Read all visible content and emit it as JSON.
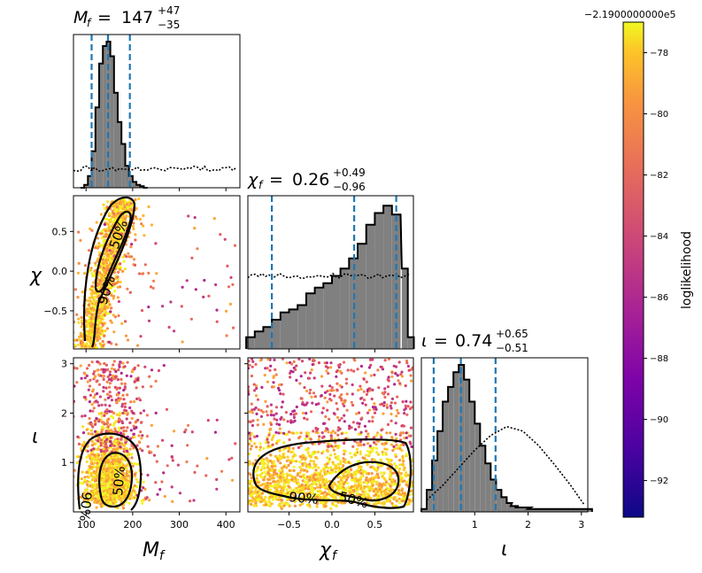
{
  "chart_data": {
    "type": "corner",
    "parameters": [
      {
        "key": "Mf",
        "symbol": "M",
        "sub": "f",
        "xlabel": "M_f",
        "title_prefix": "M",
        "title_value": "147",
        "title_plus": "+47",
        "title_minus": "−35",
        "range": [
          73,
          430
        ],
        "ticks": [
          100,
          200,
          300,
          400
        ],
        "quantiles": [
          112,
          147,
          194
        ]
      },
      {
        "key": "chif",
        "symbol": "χ",
        "sub": "f",
        "xlabel": "χ_f",
        "title_prefix": "χ",
        "title_value": "0.26",
        "title_plus": "+0.49",
        "title_minus": "−0.96",
        "range": [
          -0.98,
          0.95
        ],
        "ticks": [
          -0.5,
          0.0,
          0.5
        ],
        "tick_labels": [
          "−0.5",
          "0.0",
          "0.5"
        ],
        "quantiles": [
          -0.7,
          0.26,
          0.75
        ]
      },
      {
        "key": "iota",
        "symbol": "ι",
        "xlabel": "ι",
        "title_prefix": "ι",
        "title_value": "0.74",
        "title_plus": "+0.65",
        "title_minus": "−0.51",
        "range": [
          0.0,
          3.12
        ],
        "ticks": [
          1,
          2,
          3
        ],
        "quantiles": [
          0.23,
          0.74,
          1.39
        ]
      }
    ],
    "marginal_histograms": {
      "Mf": {
        "posterior": {
          "bin_centers": [
            92,
            100,
            108,
            116,
            124,
            132,
            140,
            148,
            156,
            164,
            172,
            180,
            188,
            196,
            204,
            212,
            220,
            228
          ],
          "density": [
            0.0,
            0.02,
            0.08,
            0.25,
            0.55,
            0.85,
            0.97,
            1.0,
            0.9,
            0.65,
            0.45,
            0.3,
            0.15,
            0.08,
            0.04,
            0.02,
            0.01,
            0.0
          ]
        },
        "prior_level": 0.13
      },
      "chif": {
        "posterior": {
          "bin_centers": [
            -0.95,
            -0.85,
            -0.75,
            -0.65,
            -0.55,
            -0.45,
            -0.35,
            -0.25,
            -0.15,
            -0.05,
            0.05,
            0.15,
            0.25,
            0.35,
            0.45,
            0.55,
            0.65,
            0.75,
            0.85,
            0.92
          ],
          "density": [
            0.08,
            0.12,
            0.15,
            0.2,
            0.25,
            0.27,
            0.3,
            0.38,
            0.42,
            0.45,
            0.5,
            0.55,
            0.62,
            0.72,
            0.85,
            0.93,
            0.98,
            0.92,
            0.55,
            0.08
          ]
        },
        "prior_level": 0.5
      },
      "iota": {
        "posterior": {
          "bin_centers": [
            0.05,
            0.15,
            0.25,
            0.35,
            0.45,
            0.55,
            0.65,
            0.75,
            0.85,
            0.95,
            1.05,
            1.15,
            1.25,
            1.35,
            1.45,
            1.55,
            1.65,
            1.75,
            1.9,
            2.2,
            2.6,
            3.0
          ],
          "density": [
            0.02,
            0.15,
            0.35,
            0.55,
            0.75,
            0.85,
            0.95,
            1.0,
            0.9,
            0.75,
            0.6,
            0.45,
            0.33,
            0.22,
            0.15,
            0.1,
            0.06,
            0.04,
            0.03,
            0.02,
            0.02,
            0.02
          ]
        },
        "prior": {
          "x": [
            0.1,
            0.4,
            0.7,
            1.0,
            1.3,
            1.6,
            1.9,
            2.2,
            2.5,
            2.8,
            3.05
          ],
          "density": [
            0.08,
            0.18,
            0.3,
            0.42,
            0.52,
            0.58,
            0.55,
            0.45,
            0.32,
            0.18,
            0.05
          ]
        }
      }
    },
    "contour_labels": [
      "50%",
      "90%"
    ],
    "scatter_bands": {
      "Mf_chif": {
        "x_center": [
          110,
          200
        ],
        "y_range": [
          -0.98,
          0.92
        ]
      },
      "Mf_iota": {
        "x_center": 150,
        "x_spread": 45,
        "y_range": [
          0.05,
          2.0
        ],
        "sparse_x": [
          100,
          280
        ],
        "sparse_y": [
          1.4,
          3.05
        ]
      },
      "chif_iota": {
        "x_range": [
          -0.98,
          0.95
        ],
        "y_range": [
          0.05,
          1.6
        ],
        "sparse_y": [
          1.5,
          3.05
        ]
      }
    },
    "colorbar": {
      "label": "loglikelihood",
      "offset_text": "−2.1900000000e5",
      "range": [
        -93.2,
        -77.0
      ],
      "ticks": [
        -78,
        -80,
        -82,
        -84,
        -86,
        -88,
        -90,
        -92
      ],
      "tick_labels": [
        "−78",
        "−80",
        "−82",
        "−84",
        "−86",
        "−88",
        "−90",
        "−92"
      ],
      "colormap": "plasma"
    },
    "colors": {
      "quantile_line": "#1f77b4",
      "histogram_fill": "#808080",
      "contour": "#000000"
    },
    "grid": false
  }
}
